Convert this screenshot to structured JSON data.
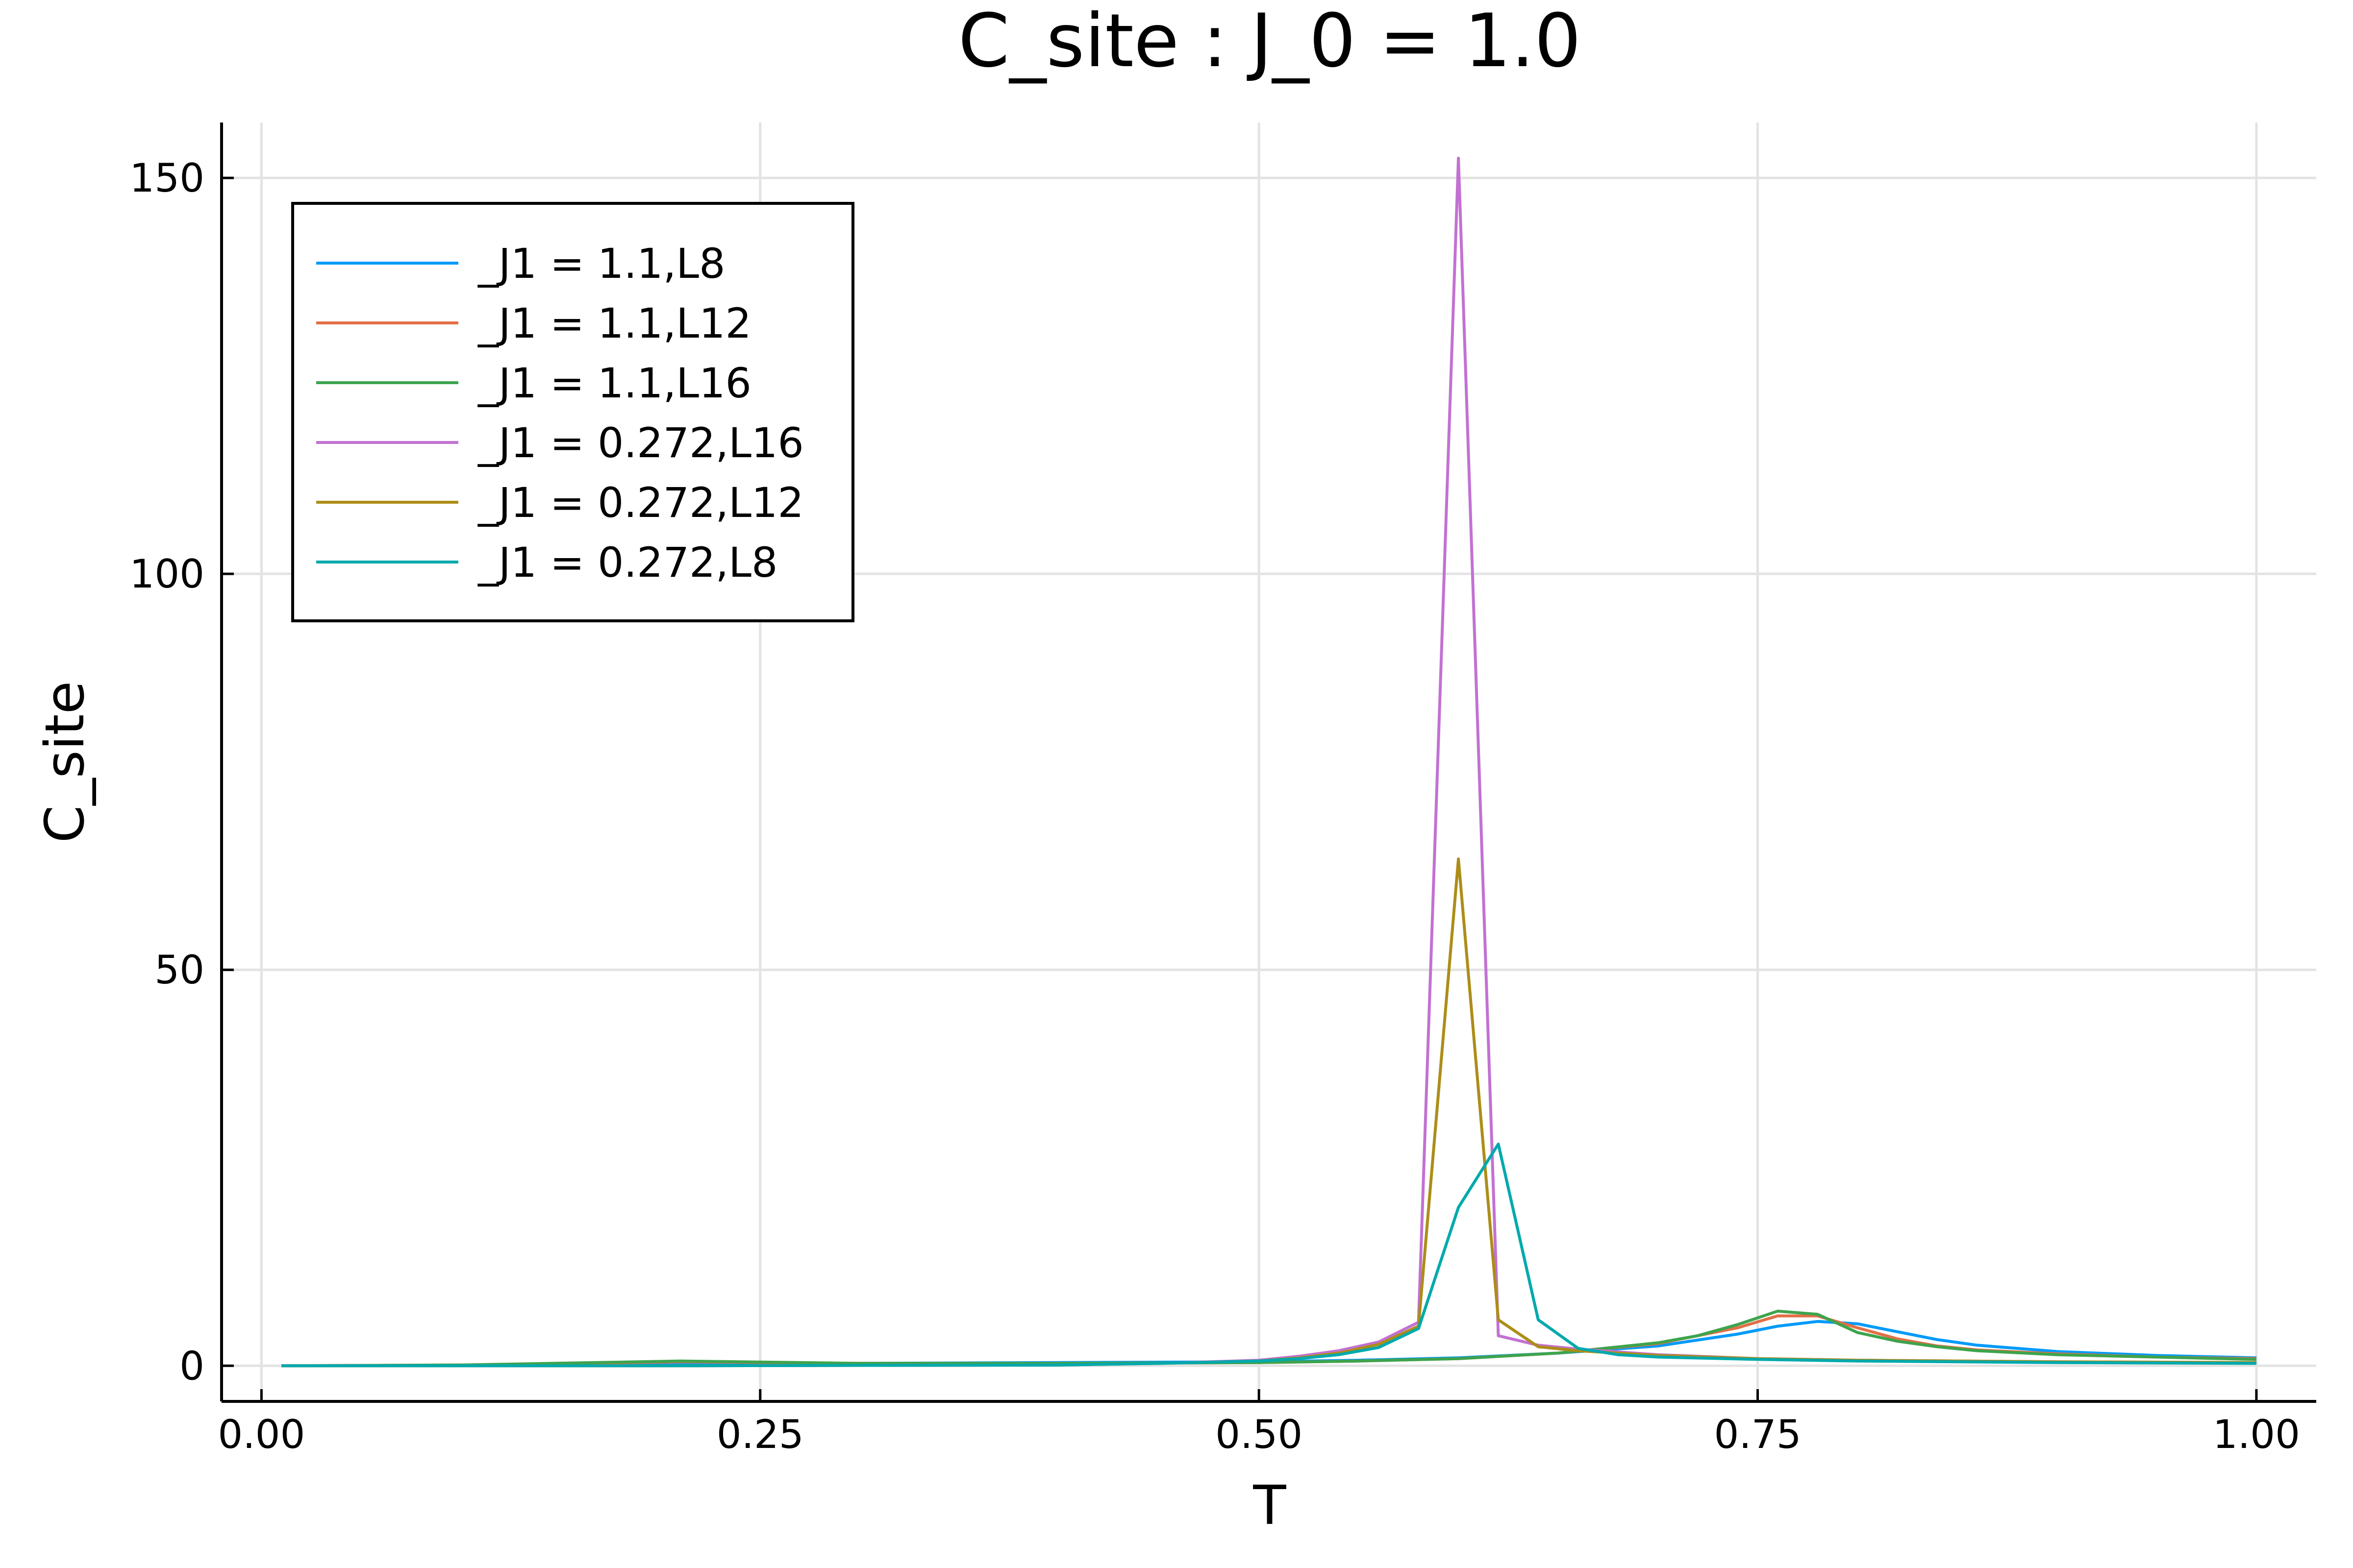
{
  "chart_data": {
    "type": "line",
    "title": "C_site : J_0 = 1.0",
    "xlabel": "T",
    "ylabel": "C_site",
    "xlim": [
      -0.02,
      1.03
    ],
    "ylim": [
      -4.5,
      157
    ],
    "xticks": [
      0.0,
      0.25,
      0.5,
      0.75,
      1.0
    ],
    "xtick_labels": [
      "0.00",
      "0.25",
      "0.50",
      "0.75",
      "1.00"
    ],
    "yticks": [
      0,
      50,
      100,
      150
    ],
    "ytick_labels": [
      "0",
      "50",
      "100",
      "150"
    ],
    "grid": true,
    "legend_position": "top-left",
    "series": [
      {
        "name": "_J1 = 1.1,L8",
        "color": "#009af9",
        "x": [
          0.01,
          0.1,
          0.2,
          0.3,
          0.4,
          0.5,
          0.55,
          0.6,
          0.65,
          0.7,
          0.74,
          0.76,
          0.78,
          0.8,
          0.82,
          0.84,
          0.86,
          0.9,
          0.95,
          1.0
        ],
        "y": [
          0.0,
          0.05,
          0.2,
          0.3,
          0.4,
          0.5,
          0.7,
          1.0,
          1.6,
          2.5,
          4.0,
          5.0,
          5.6,
          5.3,
          4.3,
          3.3,
          2.6,
          1.8,
          1.3,
          1.0
        ]
      },
      {
        "name": "_J1 = 1.1,L12",
        "color": "#e26f46",
        "x": [
          0.01,
          0.1,
          0.21,
          0.3,
          0.4,
          0.5,
          0.55,
          0.6,
          0.65,
          0.7,
          0.74,
          0.76,
          0.78,
          0.8,
          0.82,
          0.84,
          0.86,
          0.9,
          0.95,
          1.0
        ],
        "y": [
          0.0,
          0.1,
          0.5,
          0.3,
          0.3,
          0.4,
          0.6,
          0.9,
          1.6,
          2.8,
          4.8,
          6.3,
          6.3,
          4.8,
          3.4,
          2.5,
          2.0,
          1.5,
          1.1,
          0.9
        ]
      },
      {
        "name": "_J1 = 1.1,L16",
        "color": "#3da44d",
        "x": [
          0.01,
          0.1,
          0.21,
          0.3,
          0.4,
          0.5,
          0.55,
          0.6,
          0.65,
          0.7,
          0.72,
          0.74,
          0.76,
          0.78,
          0.8,
          0.82,
          0.84,
          0.86,
          0.9,
          0.95,
          1.0
        ],
        "y": [
          0.0,
          0.1,
          0.6,
          0.3,
          0.3,
          0.4,
          0.6,
          0.9,
          1.6,
          2.9,
          3.8,
          5.2,
          6.9,
          6.5,
          4.2,
          3.1,
          2.4,
          1.9,
          1.4,
          1.1,
          0.8
        ]
      },
      {
        "name": "_J1 = 0.272,L16",
        "color": "#c271d2",
        "x": [
          0.01,
          0.1,
          0.2,
          0.3,
          0.4,
          0.45,
          0.5,
          0.52,
          0.54,
          0.56,
          0.58,
          0.6,
          0.62,
          0.64,
          0.66,
          0.7,
          0.75,
          0.8,
          0.9,
          1.0
        ],
        "y": [
          0.0,
          0.0,
          0.0,
          0.05,
          0.1,
          0.3,
          0.7,
          1.2,
          1.9,
          3.0,
          5.5,
          152.5,
          3.8,
          2.6,
          2.1,
          1.4,
          0.9,
          0.7,
          0.5,
          0.4
        ]
      },
      {
        "name": "_J1 = 0.272,L12",
        "color": "#ac8d18",
        "x": [
          0.01,
          0.1,
          0.2,
          0.3,
          0.4,
          0.45,
          0.5,
          0.52,
          0.54,
          0.56,
          0.58,
          0.6,
          0.62,
          0.64,
          0.66,
          0.7,
          0.75,
          0.8,
          0.9,
          1.0
        ],
        "y": [
          0.0,
          0.0,
          0.0,
          0.05,
          0.1,
          0.3,
          0.6,
          1.0,
          1.6,
          2.7,
          5.0,
          64.0,
          5.8,
          2.4,
          1.9,
          1.3,
          0.9,
          0.7,
          0.5,
          0.4
        ]
      },
      {
        "name": "_J1 = 0.272,L8",
        "color": "#00a9ad",
        "x": [
          0.01,
          0.1,
          0.2,
          0.3,
          0.4,
          0.45,
          0.5,
          0.52,
          0.54,
          0.56,
          0.58,
          0.6,
          0.62,
          0.64,
          0.66,
          0.68,
          0.7,
          0.75,
          0.8,
          0.9,
          1.0
        ],
        "y": [
          0.0,
          0.0,
          0.0,
          0.05,
          0.1,
          0.3,
          0.6,
          0.9,
          1.4,
          2.3,
          4.7,
          20.0,
          28.0,
          5.8,
          2.2,
          1.4,
          1.1,
          0.8,
          0.6,
          0.4,
          0.3
        ]
      }
    ]
  }
}
